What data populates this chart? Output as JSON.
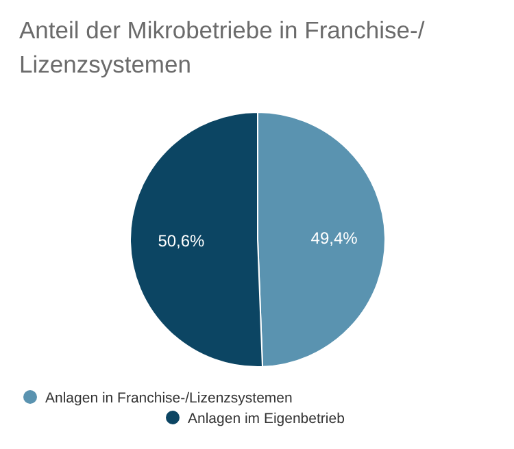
{
  "chart_data": {
    "type": "pie",
    "title": "Anteil der Mikrobetriebe in Franchise-/Lizenzsystemen",
    "categories": [
      "Anlagen in Franchise-/Lizenzsystemen",
      "Anlagen im Eigenbetrieb"
    ],
    "values": [
      49.4,
      50.6
    ],
    "colors": [
      "#5a93b0",
      "#0c4563"
    ],
    "value_labels": [
      "49,4%",
      "50,6%"
    ],
    "legend": "bottom"
  }
}
